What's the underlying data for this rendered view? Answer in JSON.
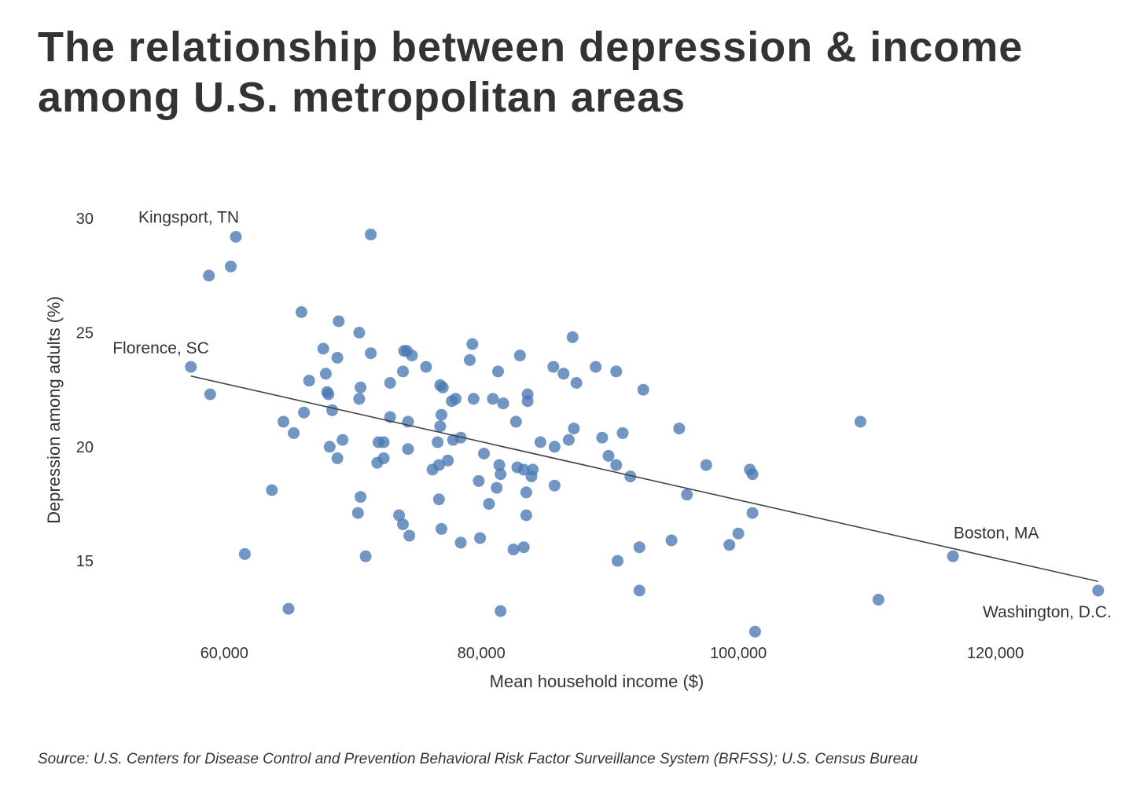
{
  "title": "The relationship between depression & income among U.S. metropolitan areas",
  "source": "Source: U.S. Centers for Disease Control and Prevention Behavioral Risk Factor Surveillance System (BRFSS); U.S. Census Bureau",
  "colors": {
    "point": "#4a78b4",
    "trend": "#444444",
    "text": "#333333"
  },
  "chart_data": {
    "type": "scatter",
    "title": "The relationship between depression & income among U.S. metropolitan areas",
    "xlabel": "Mean household income ($)",
    "ylabel": "Depression among adults (%)",
    "xlim": [
      50500,
      128500
    ],
    "ylim": [
      11.7,
      30.8
    ],
    "xticks": [
      60000,
      80000,
      100000,
      120000
    ],
    "xtick_labels": [
      "60,000",
      "80,000",
      "100,000",
      "120,000"
    ],
    "yticks": [
      15,
      20,
      25,
      30
    ],
    "ytick_labels": [
      "15",
      "20",
      "25",
      "30"
    ],
    "grid": false,
    "trendline": {
      "x": [
        57400,
        128000
      ],
      "y": [
        23.1,
        14.1
      ]
    },
    "annotations": [
      {
        "text": "Kingsport, TN",
        "x": 60900,
        "y": 29.2
      },
      {
        "text": "Florence, SC",
        "x": 57400,
        "y": 23.5
      },
      {
        "text": "Boston, MA",
        "x": 116700,
        "y": 15.2
      },
      {
        "text": "Washington, D.C.",
        "x": 128000,
        "y": 13.7
      }
    ],
    "points": [
      [
        60900,
        29.2
      ],
      [
        71400,
        29.3
      ],
      [
        58800,
        27.5
      ],
      [
        60500,
        27.9
      ],
      [
        57400,
        23.5
      ],
      [
        58900,
        22.3
      ],
      [
        61600,
        15.3
      ],
      [
        63700,
        18.1
      ],
      [
        64600,
        21.1
      ],
      [
        65000,
        12.9
      ],
      [
        65400,
        20.6
      ],
      [
        66000,
        25.9
      ],
      [
        66200,
        21.5
      ],
      [
        66600,
        22.9
      ],
      [
        67700,
        24.3
      ],
      [
        67900,
        23.2
      ],
      [
        68000,
        22.4
      ],
      [
        68100,
        22.3
      ],
      [
        68200,
        20.0
      ],
      [
        68400,
        21.6
      ],
      [
        68800,
        19.5
      ],
      [
        68800,
        23.9
      ],
      [
        68900,
        25.5
      ],
      [
        69200,
        20.3
      ],
      [
        70400,
        17.1
      ],
      [
        70500,
        22.1
      ],
      [
        70500,
        25.0
      ],
      [
        70600,
        17.8
      ],
      [
        70600,
        22.6
      ],
      [
        71000,
        15.2
      ],
      [
        71400,
        24.1
      ],
      [
        71900,
        19.3
      ],
      [
        72000,
        20.2
      ],
      [
        72400,
        20.2
      ],
      [
        72400,
        19.5
      ],
      [
        72900,
        22.8
      ],
      [
        72900,
        21.3
      ],
      [
        73600,
        17.0
      ],
      [
        73900,
        16.6
      ],
      [
        73900,
        23.3
      ],
      [
        74000,
        24.2
      ],
      [
        74200,
        24.2
      ],
      [
        74300,
        19.9
      ],
      [
        74300,
        21.1
      ],
      [
        74400,
        16.1
      ],
      [
        74600,
        24.0
      ],
      [
        75700,
        23.5
      ],
      [
        76200,
        19.0
      ],
      [
        76600,
        20.2
      ],
      [
        76700,
        19.2
      ],
      [
        76700,
        17.7
      ],
      [
        76800,
        22.7
      ],
      [
        76800,
        20.9
      ],
      [
        76900,
        21.4
      ],
      [
        76900,
        16.4
      ],
      [
        77000,
        22.6
      ],
      [
        77400,
        19.4
      ],
      [
        77700,
        22.0
      ],
      [
        77800,
        20.3
      ],
      [
        78000,
        22.1
      ],
      [
        78400,
        20.4
      ],
      [
        78400,
        15.8
      ],
      [
        79100,
        23.8
      ],
      [
        79300,
        24.5
      ],
      [
        79400,
        22.1
      ],
      [
        79800,
        18.5
      ],
      [
        79900,
        16.0
      ],
      [
        80200,
        19.7
      ],
      [
        80600,
        17.5
      ],
      [
        80900,
        22.1
      ],
      [
        81200,
        18.2
      ],
      [
        81300,
        23.3
      ],
      [
        81400,
        19.2
      ],
      [
        81500,
        18.8
      ],
      [
        81500,
        12.8
      ],
      [
        81700,
        21.9
      ],
      [
        82500,
        15.5
      ],
      [
        82700,
        21.1
      ],
      [
        82800,
        19.1
      ],
      [
        83000,
        24.0
      ],
      [
        83300,
        15.6
      ],
      [
        83300,
        19.0
      ],
      [
        83500,
        18.0
      ],
      [
        83500,
        17.0
      ],
      [
        83600,
        22.0
      ],
      [
        83600,
        22.3
      ],
      [
        83900,
        18.7
      ],
      [
        84000,
        19.0
      ],
      [
        84600,
        20.2
      ],
      [
        85600,
        23.5
      ],
      [
        85700,
        20.0
      ],
      [
        85700,
        18.3
      ],
      [
        86400,
        23.2
      ],
      [
        86800,
        20.3
      ],
      [
        87100,
        24.8
      ],
      [
        87200,
        20.8
      ],
      [
        87400,
        22.8
      ],
      [
        88900,
        23.5
      ],
      [
        89400,
        20.4
      ],
      [
        89900,
        19.6
      ],
      [
        90500,
        23.3
      ],
      [
        90500,
        19.2
      ],
      [
        90600,
        15.0
      ],
      [
        91000,
        20.6
      ],
      [
        91600,
        18.7
      ],
      [
        92300,
        15.6
      ],
      [
        92300,
        13.7
      ],
      [
        92600,
        22.5
      ],
      [
        94800,
        15.9
      ],
      [
        95400,
        20.8
      ],
      [
        96000,
        17.9
      ],
      [
        97500,
        19.2
      ],
      [
        99300,
        15.7
      ],
      [
        100000,
        16.2
      ],
      [
        100900,
        19.0
      ],
      [
        101100,
        17.1
      ],
      [
        101100,
        18.8
      ],
      [
        101300,
        11.9
      ],
      [
        109500,
        21.1
      ],
      [
        110900,
        13.3
      ],
      [
        116700,
        15.2
      ],
      [
        128000,
        13.7
      ]
    ]
  }
}
